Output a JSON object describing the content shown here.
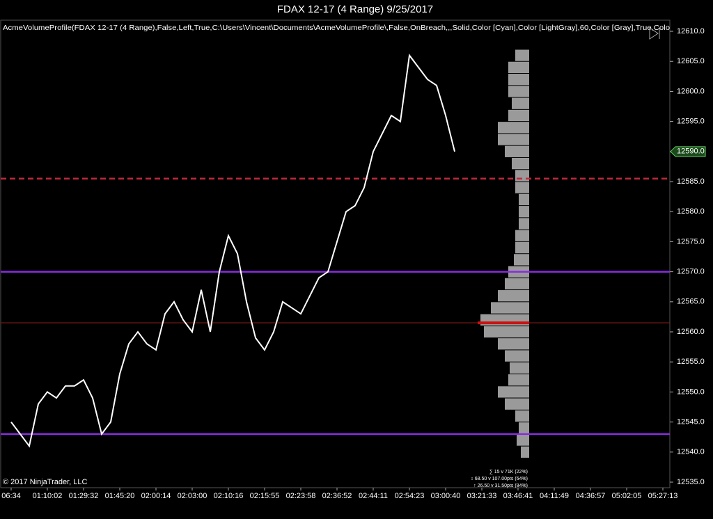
{
  "chart_data": {
    "type": "line",
    "title": "FDAX 12-17 (4 Range)  9/25/2017",
    "indicator_text": "AcmeVolumeProfile(FDAX 12-17 (4 Range),False,Left,True,C:\\Users\\Vincent\\Documents\\AcmeVolumeProfile\\,False,OnBreach,,,Solid,Color [Cyan],Color [LightGray],60,Color [Gray],True,Colo",
    "copyright": "© 2017 NinjaTrader, LLC",
    "stats": [
      "∑ 15 v 71K (22%)",
      "↕ 68.50 v 107.00pts (64%)",
      "↑ 26.50 v 31.50pts (84%)"
    ],
    "categories": [
      "06:34",
      null,
      null,
      null,
      "01:10:02",
      null,
      null,
      null,
      "01:29:32",
      null,
      null,
      null,
      "01:45:20",
      null,
      null,
      null,
      "02:00:14",
      null,
      null,
      null,
      "02:03:00",
      null,
      null,
      null,
      "02:10:16",
      null,
      null,
      null,
      "02:15:55",
      null,
      null,
      null,
      "02:23:58",
      null,
      null,
      null,
      "02:36:52",
      null,
      null,
      null,
      "02:44:11",
      null,
      null,
      null,
      "02:54:23",
      null,
      null,
      null,
      "03:00:40",
      null,
      null,
      null,
      "03:21:33",
      null,
      null,
      null,
      "03:46:41",
      null,
      null,
      null,
      "04:11:49",
      null,
      null,
      null,
      "04:36:57",
      null,
      null,
      null,
      "05:02:05",
      null,
      null,
      null,
      "05:27:13"
    ],
    "series": [
      {
        "color": "#ffffff",
        "values": [
          12545,
          12543,
          12541,
          12548,
          12550,
          12549,
          12551,
          12551,
          12552,
          12549,
          12543,
          12545,
          12553,
          12558,
          12560,
          12558,
          12557,
          12563,
          12565,
          12562,
          12560,
          12567,
          12560,
          12570,
          12576,
          12573,
          12565,
          12559,
          12557,
          12560,
          12565,
          12564,
          12563,
          12566,
          12569,
          12570,
          12575,
          12580,
          12581,
          12584,
          12590,
          12593,
          12596,
          12595,
          12606,
          12604,
          12602,
          12601,
          12596,
          12590,
          null,
          null,
          null,
          null,
          null,
          null,
          null,
          null,
          null,
          null,
          null,
          null,
          null,
          null,
          null,
          null,
          null,
          null,
          null,
          null,
          null,
          null,
          null
        ]
      }
    ],
    "ylim": [
      12535,
      12611
    ],
    "yticks": [
      {
        "value": 12535,
        "label": "12535.0"
      },
      {
        "value": 12540,
        "label": "12540.0"
      },
      {
        "value": 12545,
        "label": "12545.0"
      },
      {
        "value": 12550,
        "label": "12550.0"
      },
      {
        "value": 12555,
        "label": "12555.0"
      },
      {
        "value": 12560,
        "label": "12560.0"
      },
      {
        "value": 12565,
        "label": "12565.0"
      },
      {
        "value": 12570,
        "label": "12570.0"
      },
      {
        "value": 12575,
        "label": "12575.0"
      },
      {
        "value": 12580,
        "label": "12580.0"
      },
      {
        "value": 12585,
        "label": "12585.0"
      },
      {
        "value": 12590,
        "label": "12590.0"
      },
      {
        "value": 12595,
        "label": "12595.0"
      },
      {
        "value": 12600,
        "label": "12600.0"
      },
      {
        "value": 12605,
        "label": "12605.0"
      },
      {
        "value": 12610,
        "label": "12610.0"
      }
    ],
    "last_price": 12590,
    "last_price_label": "12590.0",
    "levels": [
      {
        "value": 12585.5,
        "color": "#c0283c",
        "style": "dashed"
      },
      {
        "value": 12570,
        "color": "#8a2be2",
        "style": "solid"
      },
      {
        "value": 12561.5,
        "color": "#8b1a1a",
        "style": "thin"
      },
      {
        "value": 12543,
        "color": "#8a2be2",
        "style": "solid"
      }
    ],
    "volume_profile": {
      "color": "#9a9a9a",
      "poc": 12561.5,
      "poc_color": "#cc1111",
      "levels": [
        12540,
        12542,
        12544,
        12546,
        12548,
        12550,
        12552,
        12554,
        12556,
        12558,
        12560,
        12562,
        12564,
        12566,
        12568,
        12570,
        12572,
        12574,
        12576,
        12578,
        12580,
        12582,
        12584,
        12586,
        12588,
        12590,
        12592,
        12594,
        12596,
        12598,
        12600,
        12602,
        12604,
        12606
      ],
      "values": [
        12,
        18,
        15,
        20,
        35,
        45,
        30,
        28,
        35,
        45,
        65,
        70,
        55,
        45,
        35,
        30,
        22,
        20,
        20,
        15,
        15,
        15,
        20,
        20,
        25,
        35,
        45,
        45,
        30,
        25,
        30,
        30,
        30,
        20
      ]
    }
  }
}
